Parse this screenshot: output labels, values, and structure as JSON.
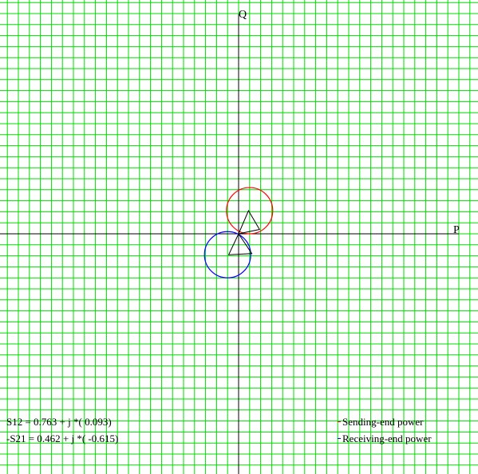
{
  "axes": {
    "x_label": "P",
    "y_label": "Q"
  },
  "chart_data": {
    "type": "power-circle-diagram",
    "x_axis_label": "P",
    "y_axis_label": "Q",
    "grid": true,
    "grid_step": 0.1,
    "sending_end_circle": {
      "center": [
        0.1,
        0.21
      ],
      "radius": 0.21
    },
    "receiving_end_circle": {
      "center": [
        -0.1,
        -0.19
      ],
      "radius": 0.21
    },
    "sending_triangle": [
      [
        0.0,
        0.0
      ],
      [
        0.09,
        0.21
      ],
      [
        0.19,
        0.04
      ]
    ],
    "receiving_triangle": [
      [
        0.0,
        0.0
      ],
      [
        -0.09,
        -0.19
      ],
      [
        0.12,
        -0.18
      ]
    ]
  },
  "results": {
    "s12": "S12 = 0.763 + j *( 0.093)",
    "s21": "-S21 = 0.462 + j *( -0.615)"
  },
  "legend": {
    "sending": {
      "label": "Sending-end power",
      "color": "#ff0000"
    },
    "receiving": {
      "label": "Receiving-end power",
      "color": "#0000ff"
    }
  },
  "colors": {
    "grid": "#00dd00",
    "axis": "#000000"
  }
}
